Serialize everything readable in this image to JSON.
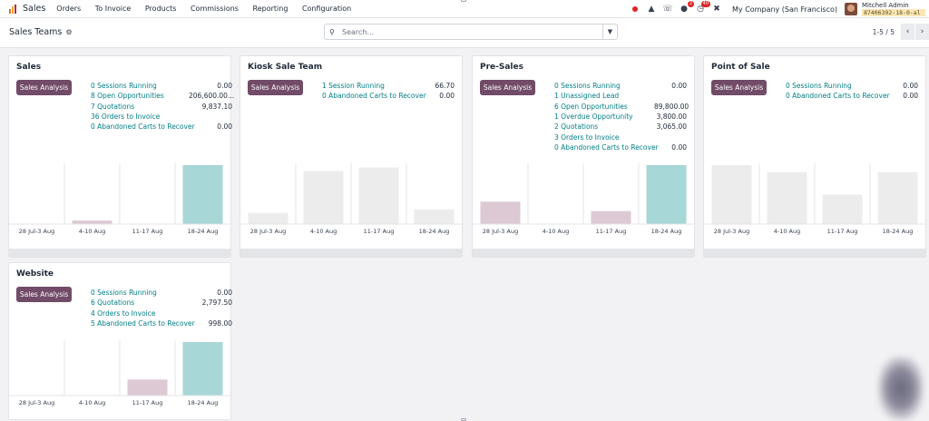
{
  "nav": {
    "app_name": "Sales",
    "menu": [
      "Orders",
      "To Invoice",
      "Products",
      "Commissions",
      "Reporting",
      "Configuration"
    ],
    "activity_badge": "2",
    "messages_badge": "40",
    "company": "My Company (San Francisco)",
    "user_name": "Mitchell Admin",
    "database": "87406392-18-0-al"
  },
  "control": {
    "title": "Sales Teams",
    "search_placeholder": "Search...",
    "pager": "1-5 / 5"
  },
  "colors": {
    "accent": "#714b67",
    "link": "#017e84",
    "teal_bar": "#a7d7d6",
    "pink_bar": "#dcc9d3",
    "gray_bar": "#ececec"
  },
  "cards": [
    {
      "name": "Sales",
      "button": "Sales Analysis",
      "stats": [
        {
          "label": "0 Sessions Running",
          "amount": "0.00"
        },
        {
          "label": "8 Open Opportunities",
          "amount": "206,600.00..."
        },
        {
          "label": "7 Quotations",
          "amount": "9,837.10"
        },
        {
          "label": "36 Orders to Invoice",
          "amount": ""
        },
        {
          "label": "0  Abandoned Carts to Recover",
          "amount": "0.00"
        }
      ],
      "chart": {
        "categories": [
          "28 Jul-3 Aug",
          "4-10 Aug",
          "11-17 Aug",
          "18-24 Aug"
        ],
        "values": [
          0,
          6,
          0,
          100
        ],
        "styles": [
          "gray",
          "pink",
          "gray",
          "teal"
        ]
      }
    },
    {
      "name": "Kiosk Sale Team",
      "button": "Sales Analysis",
      "stats": [
        {
          "label": "1 Session Running",
          "amount": "66.70"
        },
        {
          "label": "0  Abandoned Carts to Recover",
          "amount": "0.00"
        }
      ],
      "chart": {
        "categories": [
          "28 Jul-3 Aug",
          "4-10 Aug",
          "11-17 Aug",
          "18-24 Aug"
        ],
        "values": [
          19,
          90,
          96,
          25
        ],
        "styles": [
          "gray",
          "gray",
          "gray",
          "gray"
        ]
      }
    },
    {
      "name": "Pre-Sales",
      "button": "Sales Analysis",
      "stats": [
        {
          "label": "0 Sessions Running",
          "amount": "0.00"
        },
        {
          "label": "1 Unassigned Lead",
          "amount": ""
        },
        {
          "label": "6 Open Opportunities",
          "amount": "89,800.00"
        },
        {
          "label": "1 Overdue Opportunity",
          "amount": "3,800.00"
        },
        {
          "label": "2 Quotations",
          "amount": "3,065.00"
        },
        {
          "label": "3 Orders to Invoice",
          "amount": ""
        },
        {
          "label": "0  Abandoned Carts to Recover",
          "amount": "0.00"
        }
      ],
      "chart": {
        "categories": [
          "28 Jul-3 Aug",
          "4-10 Aug",
          "11-17 Aug",
          "18-24 Aug"
        ],
        "values": [
          38,
          0,
          22,
          100
        ],
        "styles": [
          "pink",
          "gray",
          "pink",
          "teal"
        ]
      }
    },
    {
      "name": "Point of Sale",
      "button": "Sales Analysis",
      "stats": [
        {
          "label": "0 Sessions Running",
          "amount": "0.00"
        },
        {
          "label": "0  Abandoned Carts to Recover",
          "amount": "0.00"
        }
      ],
      "chart": {
        "categories": [
          "28 Jul-3 Aug",
          "4-10 Aug",
          "11-17 Aug",
          "18-24 Aug"
        ],
        "values": [
          100,
          88,
          50,
          88
        ],
        "styles": [
          "gray",
          "gray",
          "gray",
          "gray"
        ]
      }
    },
    {
      "name": "Website",
      "button": "Sales Analysis",
      "stats": [
        {
          "label": "0 Sessions Running",
          "amount": "0.00"
        },
        {
          "label": "6 Quotations",
          "amount": "2,797.50"
        },
        {
          "label": "4 Orders to Invoice",
          "amount": ""
        },
        {
          "label": "5  Abandoned Carts to Recover",
          "amount": "998.00"
        }
      ],
      "chart": {
        "categories": [
          "28 Jul-3 Aug",
          "4-10 Aug",
          "11-17 Aug",
          "18-24 Aug"
        ],
        "values": [
          0,
          0,
          30,
          100
        ],
        "styles": [
          "gray",
          "gray",
          "pink",
          "teal"
        ]
      }
    }
  ]
}
